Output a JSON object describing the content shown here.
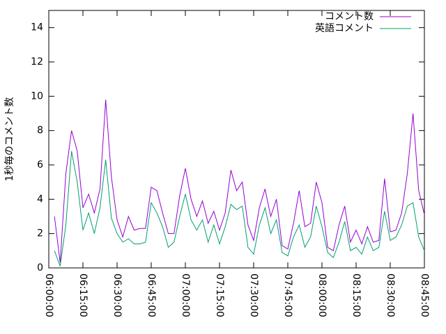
{
  "chart_data": {
    "type": "line",
    "y_label": "1秒毎のコメント数",
    "x": [
      "06:02:30",
      "06:05:00",
      "06:07:30",
      "06:10:00",
      "06:12:30",
      "06:15:00",
      "06:17:30",
      "06:20:00",
      "06:22:30",
      "06:25:00",
      "06:27:30",
      "06:30:00",
      "06:32:30",
      "06:35:00",
      "06:37:30",
      "06:40:00",
      "06:42:30",
      "06:45:00",
      "06:47:30",
      "06:50:00",
      "06:52:30",
      "06:55:00",
      "06:57:30",
      "07:00:00",
      "07:02:30",
      "07:05:00",
      "07:07:30",
      "07:10:00",
      "07:12:30",
      "07:15:00",
      "07:17:30",
      "07:20:00",
      "07:22:30",
      "07:25:00",
      "07:27:30",
      "07:30:00",
      "07:32:30",
      "07:35:00",
      "07:37:30",
      "07:40:00",
      "07:42:30",
      "07:45:00",
      "07:47:30",
      "07:50:00",
      "07:52:30",
      "07:55:00",
      "07:57:30",
      "08:00:00",
      "08:02:30",
      "08:05:00",
      "08:07:30",
      "08:10:00",
      "08:12:30",
      "08:15:00",
      "08:17:30",
      "08:20:00",
      "08:22:30",
      "08:25:00",
      "08:27:30",
      "08:30:00",
      "08:32:30",
      "08:35:00",
      "08:37:30",
      "08:40:00",
      "08:42:30",
      "08:45:00"
    ],
    "series": [
      {
        "name": "コメント数",
        "color": "#9400d3",
        "values": [
          3.0,
          0.3,
          5.5,
          8.0,
          6.8,
          3.5,
          4.3,
          3.2,
          4.6,
          9.8,
          5.3,
          2.8,
          1.8,
          3.0,
          2.2,
          2.3,
          2.3,
          4.7,
          4.5,
          3.2,
          2.0,
          2.0,
          4.2,
          5.8,
          4.0,
          3.0,
          3.9,
          2.6,
          3.3,
          2.2,
          3.2,
          5.7,
          4.5,
          5.0,
          2.5,
          1.6,
          3.5,
          4.6,
          3.0,
          4.0,
          1.3,
          1.1,
          2.6,
          4.5,
          2.4,
          2.6,
          5.0,
          3.8,
          1.2,
          1.0,
          2.5,
          3.6,
          1.5,
          2.2,
          1.4,
          2.4,
          1.5,
          1.6,
          5.2,
          2.1,
          2.2,
          3.2,
          5.5,
          9.0,
          4.5,
          3.1
        ]
      },
      {
        "name": "英語コメント",
        "color": "#009e73",
        "values": [
          1.0,
          0.1,
          2.5,
          6.8,
          5.0,
          2.2,
          3.2,
          2.0,
          3.5,
          6.3,
          2.9,
          2.0,
          1.5,
          1.7,
          1.4,
          1.4,
          1.5,
          3.8,
          3.2,
          2.4,
          1.2,
          1.5,
          3.0,
          4.3,
          2.8,
          2.2,
          2.8,
          1.5,
          2.5,
          1.4,
          2.4,
          3.7,
          3.4,
          3.6,
          1.2,
          0.8,
          2.5,
          3.5,
          2.0,
          2.8,
          0.9,
          0.7,
          1.8,
          2.5,
          1.2,
          1.8,
          3.6,
          2.4,
          0.9,
          0.6,
          1.5,
          2.7,
          1.0,
          1.2,
          0.8,
          1.8,
          1.0,
          1.2,
          3.3,
          1.6,
          1.8,
          2.5,
          3.6,
          3.8,
          1.8,
          1.0
        ]
      }
    ],
    "xlim": [
      "06:00:00",
      "08:45:00"
    ],
    "xticks": [
      "06:00:00",
      "06:15:00",
      "06:30:00",
      "06:45:00",
      "07:00:00",
      "07:15:00",
      "07:30:00",
      "07:45:00",
      "08:00:00",
      "08:15:00",
      "08:30:00",
      "08:45:00"
    ],
    "ylim": [
      0,
      15
    ],
    "yticks": [
      0,
      2,
      4,
      6,
      8,
      10,
      12,
      14
    ],
    "legend": "top-right"
  }
}
